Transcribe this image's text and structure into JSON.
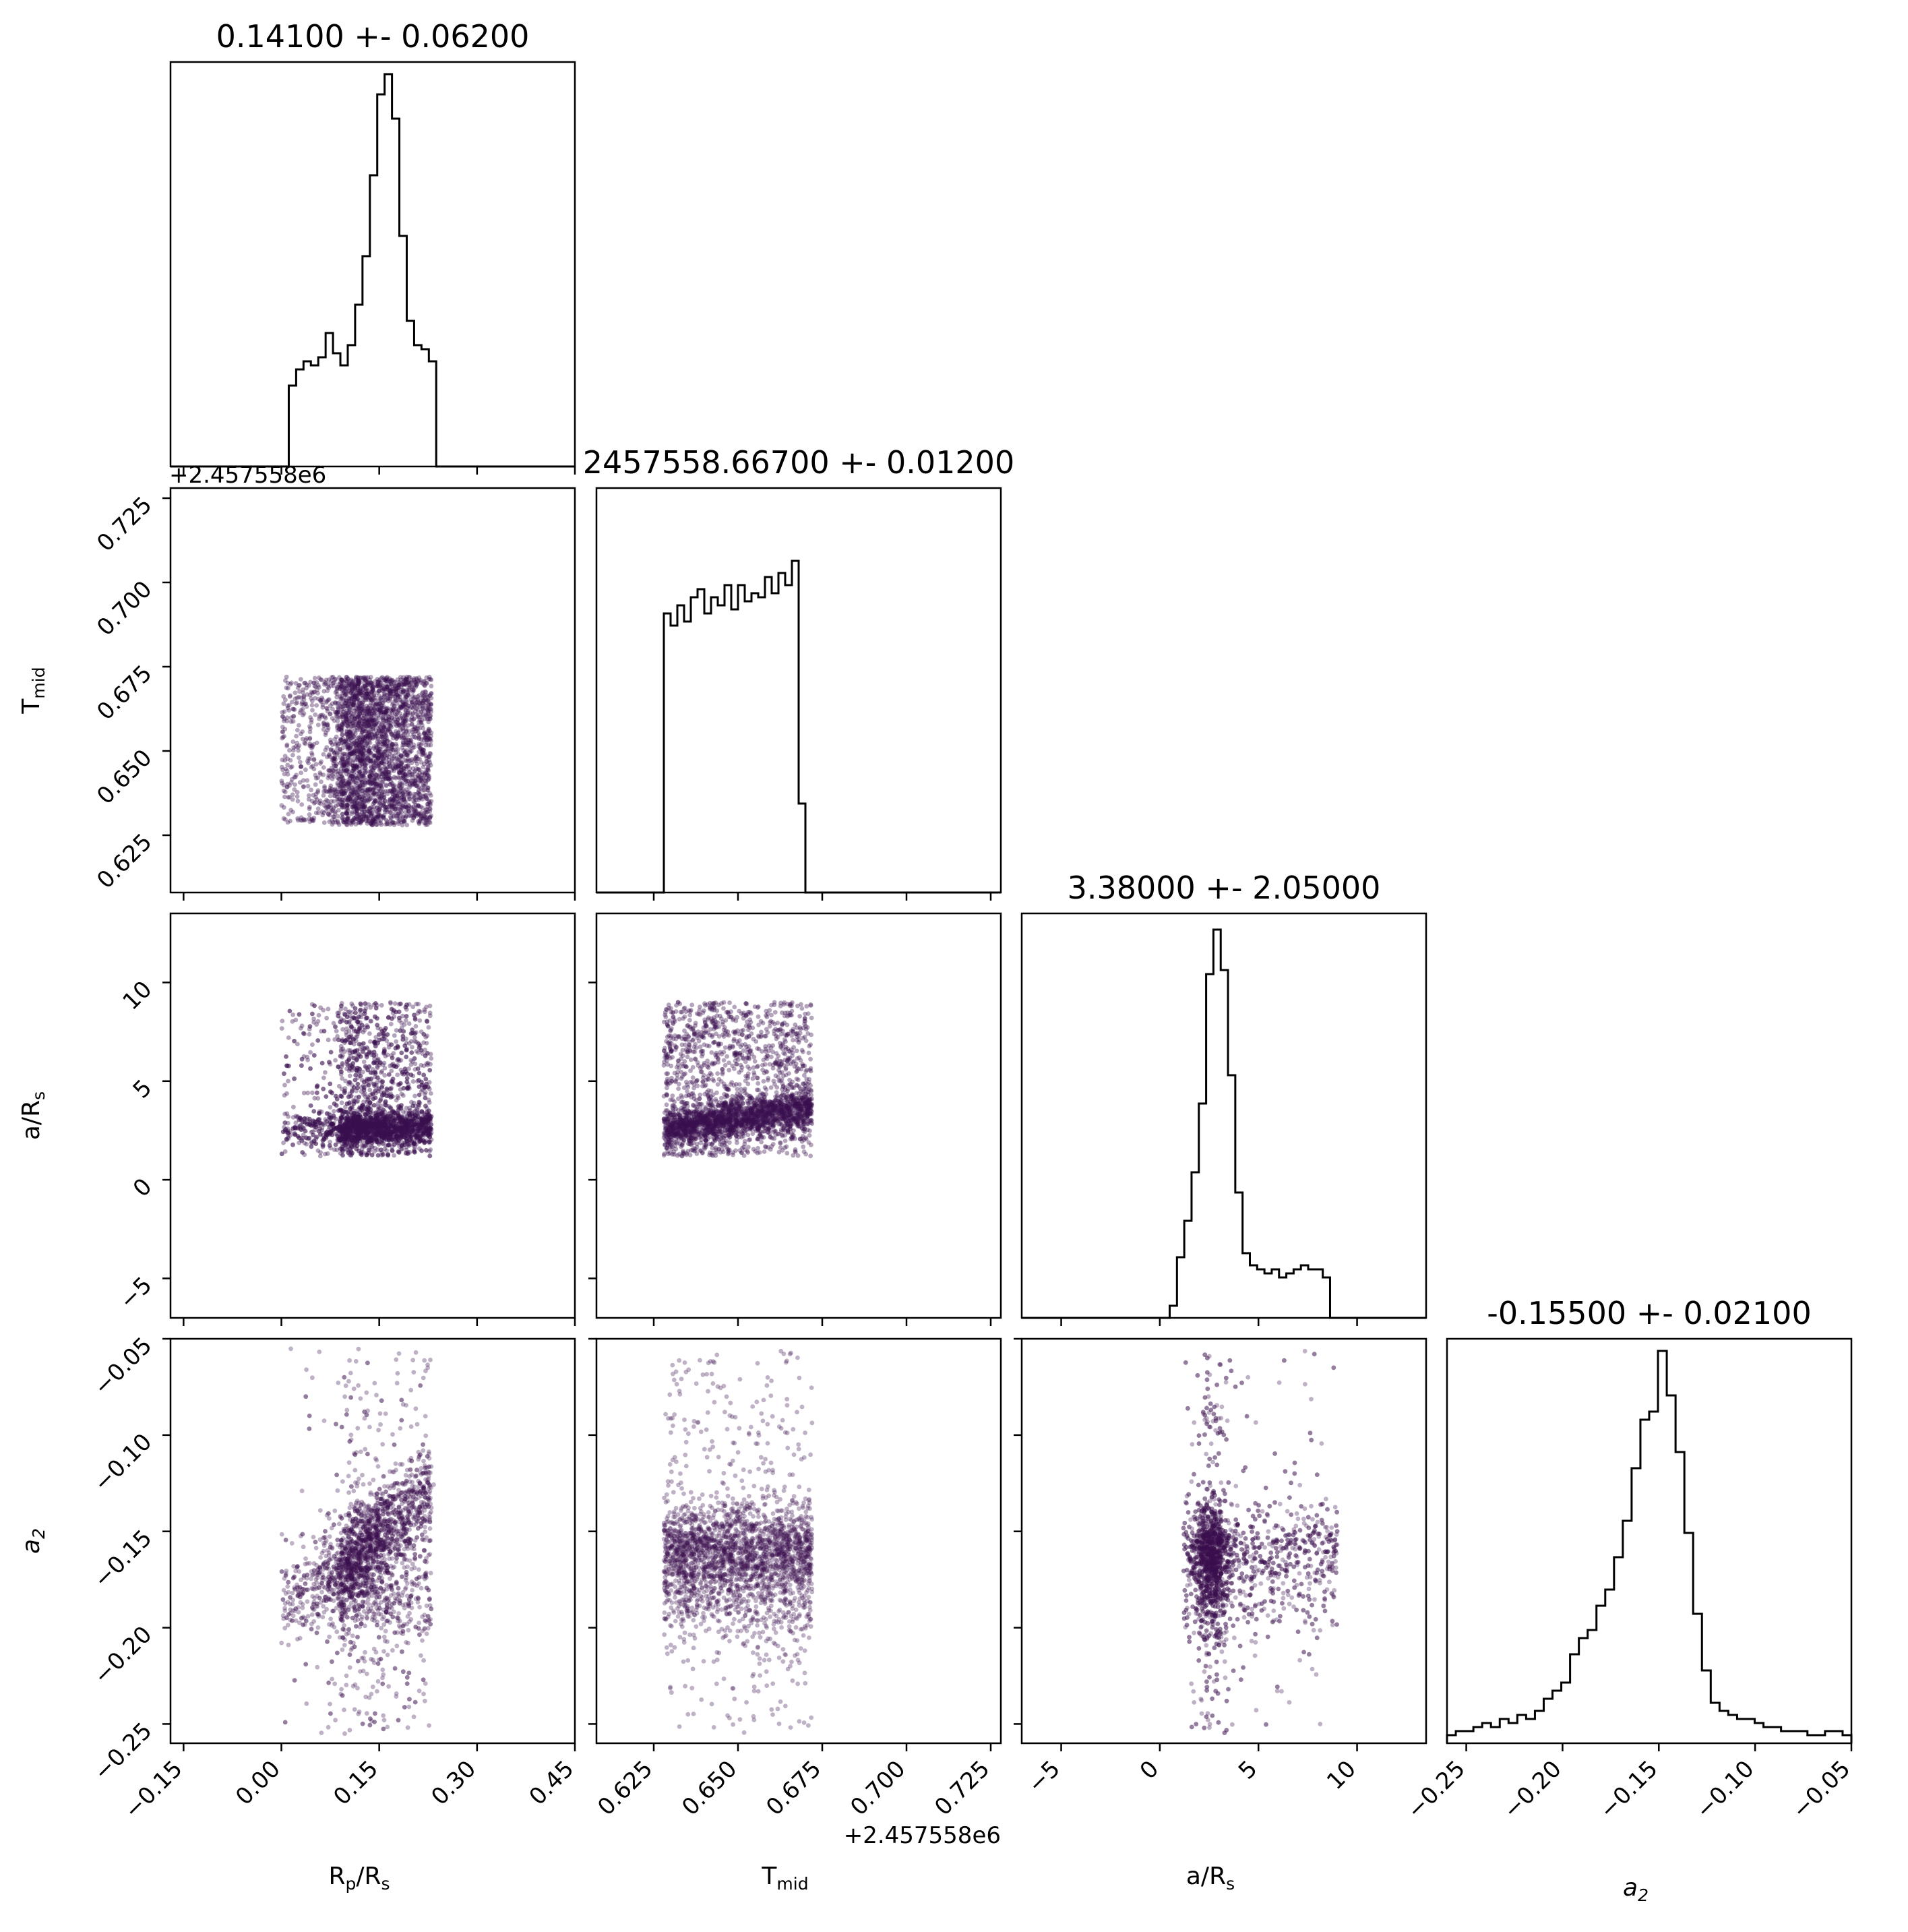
{
  "chart_data": {
    "type": "corner",
    "variables": [
      {
        "key": "rp",
        "label": "R",
        "label_sub": "p",
        "label_tail": "/R",
        "label_tail_sub": "s",
        "range": [
          -0.17,
          0.45
        ],
        "ticks": [
          -0.15,
          0.0,
          0.15,
          0.3,
          0.45
        ],
        "tick_labels": [
          "−0.15",
          "0.00",
          "0.15",
          "0.30",
          "0.45"
        ],
        "title": "0.14100 +- 0.06200"
      },
      {
        "key": "tmid",
        "label": "T",
        "label_sub": "mid",
        "label_tail": "",
        "label_tail_sub": "",
        "range": [
          0.608,
          0.728
        ],
        "ticks": [
          0.625,
          0.65,
          0.675,
          0.7,
          0.725
        ],
        "tick_labels": [
          "0.625",
          "0.650",
          "0.675",
          "0.700",
          "0.725"
        ],
        "offset_label": "+2.457558e6",
        "title": "2457558.66700 +- 0.01200"
      },
      {
        "key": "ars",
        "label": "a/R",
        "label_sub": "s",
        "label_tail": "",
        "label_tail_sub": "",
        "range": [
          -7,
          13.5
        ],
        "ticks": [
          -5,
          0,
          5,
          10
        ],
        "tick_labels": [
          "−5",
          "0",
          "5",
          "10"
        ],
        "title": "3.38000 +- 2.05000"
      },
      {
        "key": "a2",
        "label": "a",
        "label_sub": "2",
        "label_tail": "",
        "label_tail_sub": "",
        "label_italic": true,
        "range": [
          -0.26,
          -0.05
        ],
        "ticks": [
          -0.25,
          -0.2,
          -0.15,
          -0.1,
          -0.05
        ],
        "tick_labels": [
          "−0.25",
          "−0.20",
          "−0.15",
          "−0.10",
          "−0.05"
        ],
        "title": "-0.15500 +- 0.02100"
      }
    ],
    "histograms": {
      "rp": {
        "range": [
          0.0,
          0.26
        ],
        "counts": [
          0.0,
          0.2,
          0.24,
          0.26,
          0.25,
          0.27,
          0.33,
          0.28,
          0.25,
          0.3,
          0.4,
          0.52,
          0.72,
          0.92,
          0.97,
          0.86,
          0.57,
          0.36,
          0.3,
          0.29,
          0.26,
          0.0,
          0.0
        ]
      },
      "tmid": {
        "range": [
          0.628,
          0.672
        ],
        "counts": [
          0.69,
          0.66,
          0.71,
          0.67,
          0.73,
          0.75,
          0.69,
          0.73,
          0.71,
          0.76,
          0.7,
          0.76,
          0.72,
          0.74,
          0.73,
          0.78,
          0.74,
          0.79,
          0.76,
          0.82,
          0.22,
          0.0
        ]
      },
      "ars": {
        "range": [
          0.5,
          9.0
        ],
        "counts": [
          0.03,
          0.15,
          0.24,
          0.36,
          0.53,
          0.85,
          0.96,
          0.86,
          0.6,
          0.31,
          0.16,
          0.13,
          0.12,
          0.11,
          0.12,
          0.1,
          0.11,
          0.12,
          0.13,
          0.12,
          0.12,
          0.1,
          0.0
        ]
      },
      "a2": {
        "range": [
          -0.26,
          -0.05
        ],
        "counts": [
          0.02,
          0.03,
          0.03,
          0.04,
          0.05,
          0.04,
          0.06,
          0.05,
          0.07,
          0.06,
          0.08,
          0.11,
          0.13,
          0.15,
          0.22,
          0.26,
          0.28,
          0.34,
          0.38,
          0.46,
          0.55,
          0.68,
          0.8,
          0.82,
          0.97,
          0.86,
          0.72,
          0.52,
          0.32,
          0.18,
          0.1,
          0.08,
          0.07,
          0.06,
          0.06,
          0.05,
          0.04,
          0.04,
          0.03,
          0.03,
          0.03,
          0.02,
          0.02,
          0.03,
          0.03,
          0.02
        ]
      }
    },
    "scatter_color": "#3b0f4f",
    "line_color": "#000000"
  }
}
